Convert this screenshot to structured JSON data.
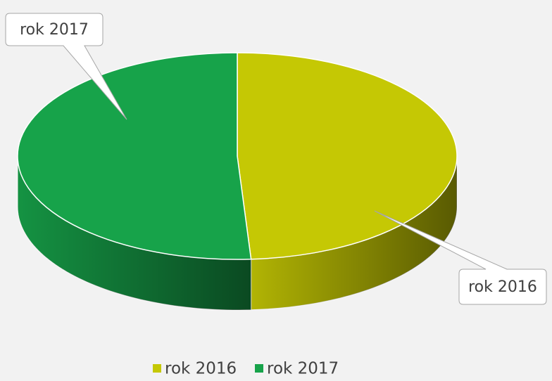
{
  "chart_data": {
    "type": "pie",
    "categories": [
      "rok 2016",
      "rok 2017"
    ],
    "values": [
      49,
      51
    ],
    "colors": [
      "#c5c804",
      "#17a34a"
    ],
    "legend": "bottom"
  }
}
